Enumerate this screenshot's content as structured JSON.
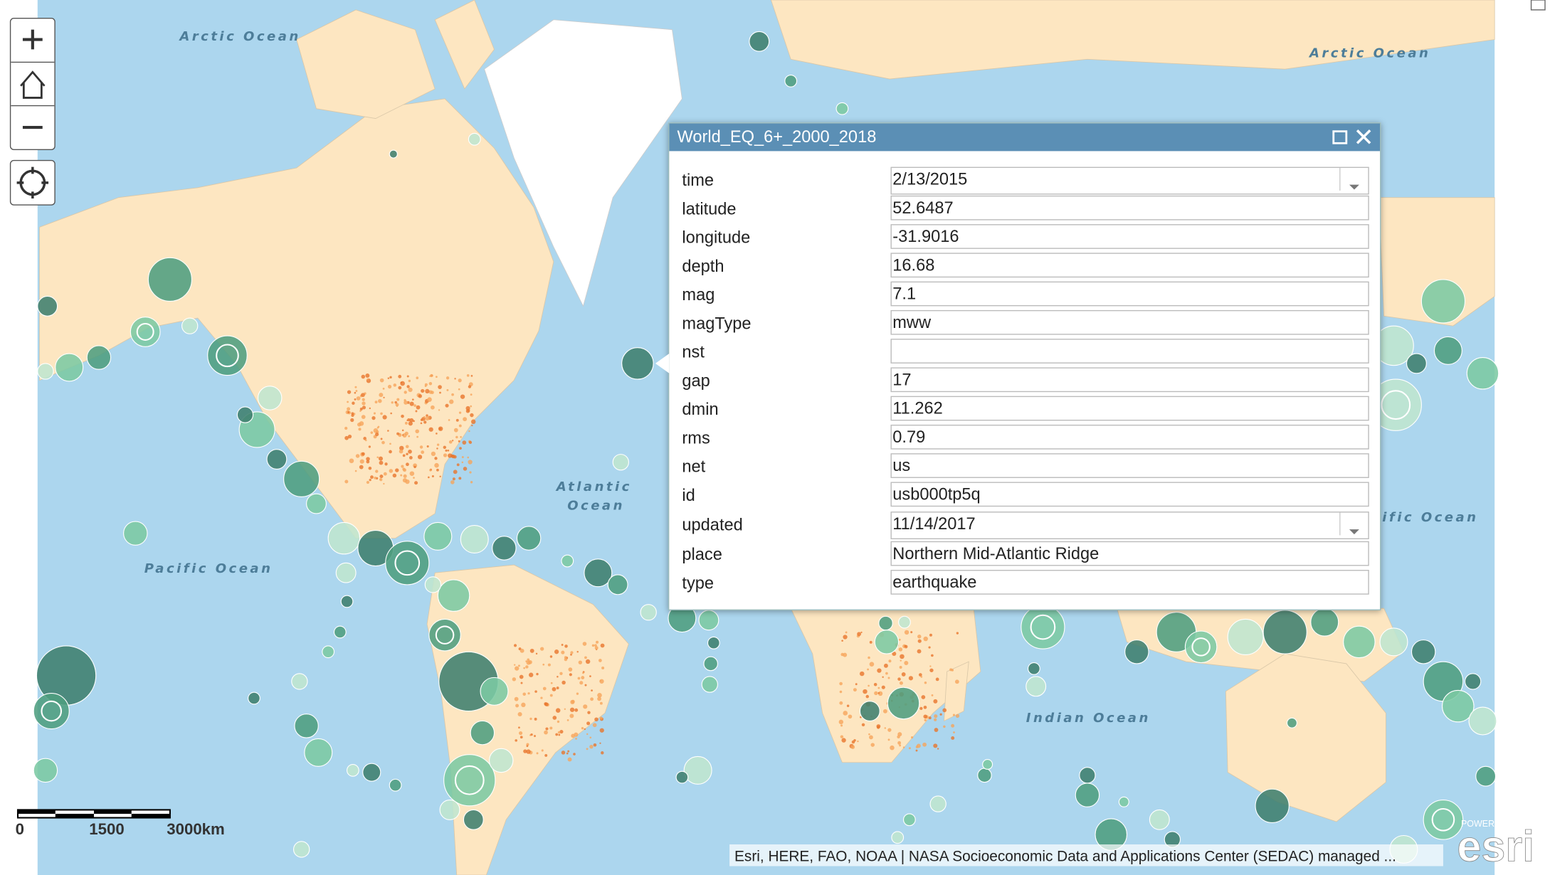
{
  "map_labels": [
    "Arctic Ocean",
    "Arctic Ocean",
    "Atlantic",
    "Ocean",
    "Pacific Ocean",
    "ific Ocean",
    "Indian Ocean"
  ],
  "popup": {
    "title": "World_EQ_6+_2000_2018",
    "fields": [
      {
        "label": "time",
        "value": "2/13/2015",
        "dropdown": true
      },
      {
        "label": "latitude",
        "value": "52.6487"
      },
      {
        "label": "longitude",
        "value": "-31.9016"
      },
      {
        "label": "depth",
        "value": "16.68"
      },
      {
        "label": "mag",
        "value": "7.1"
      },
      {
        "label": "magType",
        "value": "mww"
      },
      {
        "label": "nst"
      },
      {
        "label": "gap",
        "value": "17"
      },
      {
        "label": "dmin",
        "value": "11.262"
      },
      {
        "label": "rms",
        "value": "0.79"
      },
      {
        "label": "net",
        "value": "us"
      },
      {
        "label": "id",
        "value": "usb000tp5q"
      },
      {
        "label": "updated",
        "value": "11/14/2017",
        "dropdown": true
      },
      {
        "label": "place",
        "value": "Northern Mid-Atlantic Ridge"
      },
      {
        "label": "type",
        "value": "earthquake"
      }
    ]
  },
  "scale_bar": [
    "0",
    "1500",
    "3000km"
  ],
  "attribution": "Esri, HERE, FAO, NOAA | NASA Socioeconomic Data and Applications Center (SEDAC) managed ...",
  "logo": {
    "small": "POWERED BY",
    "big": "esri"
  }
}
